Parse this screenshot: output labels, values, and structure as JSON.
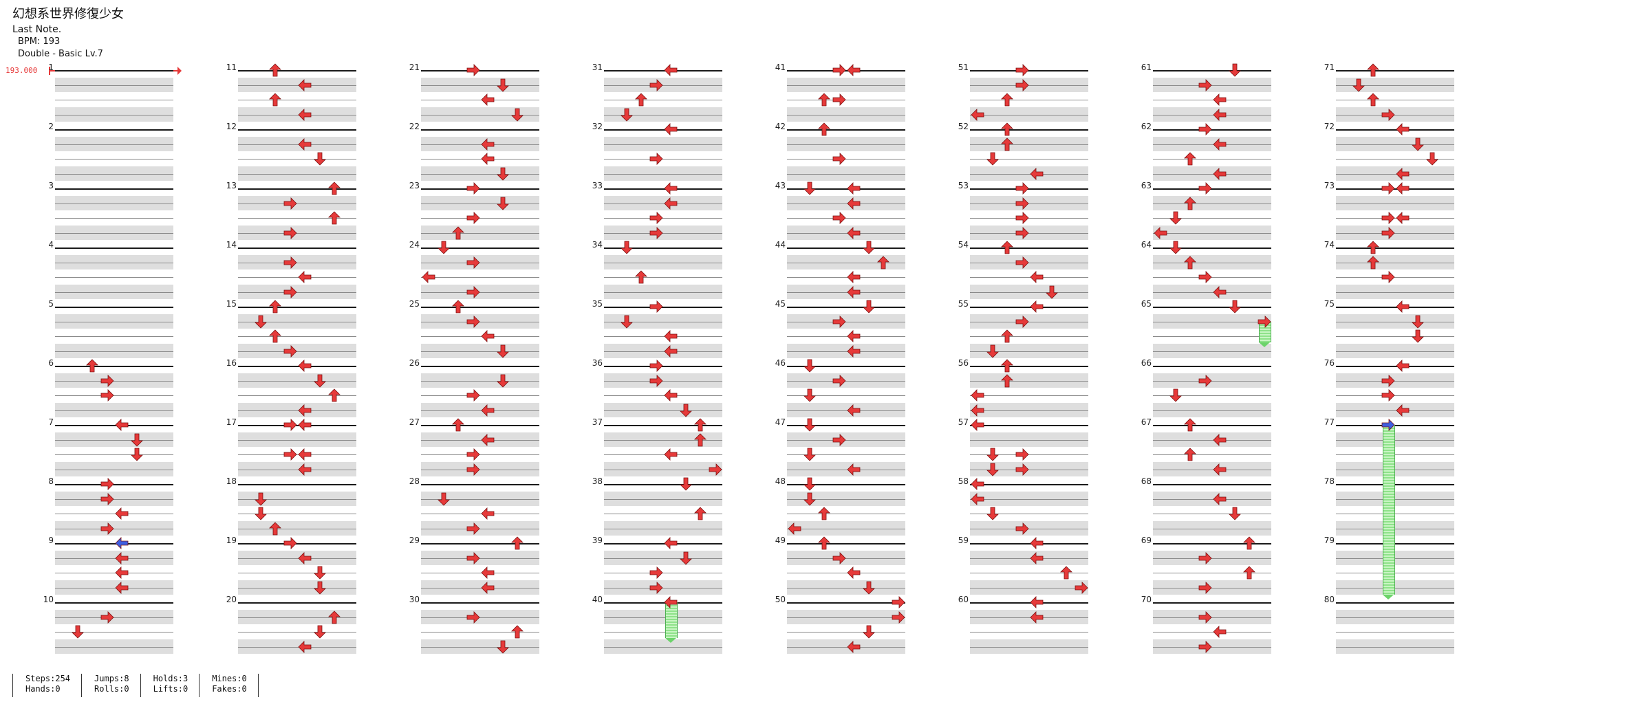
{
  "header": {
    "song_title": "幻想系世界修復少女",
    "artist": "Last Note.",
    "bpm_line": "BPM: 193",
    "chart_info": "Double - Basic  Lv.7"
  },
  "bpm_marker": "193.000",
  "colors": {
    "arrow": "#e63a3a",
    "blue": "#3f5fe0",
    "hold": "#8fe28a"
  },
  "measures": {
    "labels": [
      "1",
      "2",
      "3",
      "4",
      "5",
      "6",
      "7",
      "8",
      "9",
      "10",
      "11",
      "12",
      "13",
      "14",
      "15",
      "16",
      "17",
      "18",
      "19",
      "20",
      "21",
      "22",
      "23",
      "24",
      "25",
      "26",
      "27",
      "28",
      "29",
      "30",
      "31",
      "32",
      "33",
      "34",
      "35",
      "36",
      "37",
      "38",
      "39",
      "40",
      "41",
      "42",
      "43",
      "44",
      "45",
      "46",
      "47",
      "48",
      "49",
      "50",
      "51",
      "52",
      "53",
      "54",
      "55",
      "56",
      "57",
      "58",
      "59",
      "60",
      "61",
      "62",
      "63",
      "64",
      "65",
      "66",
      "67",
      "68",
      "69",
      "70",
      "71",
      "72",
      "73",
      "74",
      "75",
      "76",
      "77",
      "78",
      "79",
      "80"
    ],
    "notes": {
      "6": [
        [
          0,
          2,
          "U"
        ],
        [
          1,
          3,
          "R"
        ],
        [
          2,
          3,
          "R"
        ]
      ],
      "7": [
        [
          0,
          4,
          "L"
        ],
        [
          1,
          5,
          "D"
        ],
        [
          2,
          5,
          "D"
        ]
      ],
      "8": [
        [
          0,
          3,
          "R"
        ],
        [
          1,
          3,
          "R"
        ],
        [
          2,
          4,
          "L"
        ],
        [
          3,
          3,
          "R"
        ]
      ],
      "9": [
        [
          0,
          4,
          "L",
          "blue"
        ],
        [
          1,
          4,
          "L"
        ],
        [
          2,
          4,
          "L"
        ],
        [
          3,
          4,
          "L"
        ]
      ],
      "10": [
        [
          1,
          3,
          "R"
        ],
        [
          2,
          1,
          "D"
        ]
      ],
      "11": [
        [
          0,
          2,
          "U"
        ],
        [
          1,
          4,
          "L"
        ],
        [
          2,
          2,
          "U"
        ],
        [
          3,
          4,
          "L"
        ]
      ],
      "12": [
        [
          1,
          4,
          "L"
        ],
        [
          2,
          5,
          "D"
        ]
      ],
      "13": [
        [
          0,
          6,
          "U"
        ],
        [
          1,
          3,
          "R"
        ],
        [
          2,
          6,
          "U"
        ],
        [
          3,
          3,
          "R"
        ]
      ],
      "14": [
        [
          1,
          3,
          "R"
        ],
        [
          2,
          4,
          "L"
        ],
        [
          3,
          3,
          "R"
        ]
      ],
      "15": [
        [
          0,
          2,
          "U"
        ],
        [
          1,
          1,
          "D"
        ],
        [
          2,
          2,
          "U"
        ],
        [
          3,
          3,
          "R"
        ]
      ],
      "16": [
        [
          0,
          4,
          "L"
        ],
        [
          1,
          5,
          "D"
        ],
        [
          2,
          6,
          "U"
        ],
        [
          3,
          4,
          "L"
        ]
      ],
      "17": [
        [
          0,
          3,
          "R"
        ],
        [
          0,
          4,
          "L"
        ],
        [
          2,
          3,
          "R"
        ],
        [
          2,
          4,
          "L"
        ],
        [
          3,
          4,
          "L"
        ]
      ],
      "18": [
        [
          1,
          1,
          "D"
        ],
        [
          2,
          1,
          "D"
        ],
        [
          3,
          2,
          "U"
        ]
      ],
      "19": [
        [
          0,
          3,
          "R"
        ],
        [
          1,
          4,
          "L"
        ],
        [
          2,
          5,
          "D"
        ],
        [
          3,
          5,
          "D"
        ]
      ],
      "20": [
        [
          1,
          6,
          "U"
        ],
        [
          2,
          5,
          "D"
        ],
        [
          3,
          4,
          "L"
        ]
      ],
      "21": [
        [
          0,
          3,
          "R"
        ],
        [
          1,
          5,
          "D"
        ],
        [
          2,
          4,
          "L"
        ],
        [
          3,
          6,
          "D"
        ]
      ],
      "22": [
        [
          1,
          4,
          "L"
        ],
        [
          2,
          4,
          "L"
        ],
        [
          3,
          5,
          "D"
        ]
      ],
      "23": [
        [
          0,
          3,
          "R"
        ],
        [
          1,
          5,
          "D"
        ],
        [
          2,
          3,
          "R"
        ],
        [
          3,
          2,
          "U"
        ]
      ],
      "24": [
        [
          0,
          1,
          "D"
        ],
        [
          1,
          3,
          "R"
        ],
        [
          2,
          0,
          "L"
        ],
        [
          3,
          3,
          "R"
        ]
      ],
      "25": [
        [
          0,
          2,
          "U"
        ],
        [
          1,
          3,
          "R"
        ],
        [
          2,
          4,
          "L"
        ],
        [
          3,
          5,
          "D"
        ]
      ],
      "26": [
        [
          1,
          5,
          "D"
        ],
        [
          2,
          3,
          "R"
        ],
        [
          3,
          4,
          "L"
        ]
      ],
      "27": [
        [
          0,
          2,
          "U"
        ],
        [
          1,
          4,
          "L"
        ],
        [
          2,
          3,
          "R"
        ],
        [
          3,
          3,
          "R"
        ]
      ],
      "28": [
        [
          1,
          1,
          "D"
        ],
        [
          2,
          4,
          "L"
        ],
        [
          3,
          3,
          "R"
        ]
      ],
      "29": [
        [
          0,
          6,
          "U"
        ],
        [
          1,
          3,
          "R"
        ],
        [
          2,
          4,
          "L"
        ],
        [
          3,
          4,
          "L"
        ]
      ],
      "30": [
        [
          1,
          3,
          "R"
        ],
        [
          2,
          6,
          "U"
        ],
        [
          3,
          5,
          "D"
        ]
      ],
      "31": [
        [
          0,
          4,
          "L"
        ],
        [
          1,
          3,
          "R"
        ],
        [
          2,
          2,
          "U"
        ],
        [
          3,
          1,
          "D"
        ]
      ],
      "32": [
        [
          0,
          4,
          "L"
        ],
        [
          2,
          3,
          "R"
        ]
      ],
      "33": [
        [
          0,
          4,
          "L"
        ],
        [
          1,
          4,
          "L"
        ],
        [
          2,
          3,
          "R"
        ],
        [
          3,
          3,
          "R"
        ]
      ],
      "34": [
        [
          0,
          1,
          "D"
        ],
        [
          2,
          2,
          "U"
        ]
      ],
      "35": [
        [
          0,
          3,
          "R"
        ],
        [
          1,
          1,
          "D"
        ],
        [
          2,
          4,
          "L"
        ],
        [
          3,
          4,
          "L"
        ]
      ],
      "36": [
        [
          0,
          3,
          "R"
        ],
        [
          1,
          3,
          "R"
        ],
        [
          2,
          4,
          "L"
        ],
        [
          3,
          5,
          "D"
        ]
      ],
      "37": [
        [
          0,
          6,
          "U"
        ],
        [
          1,
          6,
          "U"
        ],
        [
          2,
          4,
          "L"
        ],
        [
          3,
          7,
          "R"
        ]
      ],
      "38": [
        [
          0,
          5,
          "D"
        ],
        [
          2,
          6,
          "U"
        ]
      ],
      "39": [
        [
          0,
          4,
          "L"
        ],
        [
          1,
          5,
          "D"
        ],
        [
          2,
          3,
          "R"
        ],
        [
          3,
          3,
          "R"
        ]
      ],
      "40": [
        [
          0,
          4,
          "L"
        ]
      ],
      "41": [
        [
          0,
          3,
          "R"
        ],
        [
          0,
          4,
          "L"
        ],
        [
          2,
          2,
          "U"
        ],
        [
          2,
          3,
          "R"
        ]
      ],
      "42": [
        [
          0,
          2,
          "U"
        ],
        [
          2,
          3,
          "R"
        ]
      ],
      "43": [
        [
          0,
          1,
          "D"
        ],
        [
          0,
          4,
          "L"
        ],
        [
          1,
          4,
          "L"
        ],
        [
          2,
          3,
          "R"
        ],
        [
          3,
          4,
          "L"
        ]
      ],
      "44": [
        [
          0,
          5,
          "D"
        ],
        [
          1,
          6,
          "U"
        ],
        [
          2,
          4,
          "L"
        ],
        [
          3,
          4,
          "L"
        ]
      ],
      "45": [
        [
          0,
          5,
          "D"
        ],
        [
          1,
          3,
          "R"
        ],
        [
          2,
          4,
          "L"
        ],
        [
          3,
          4,
          "L"
        ]
      ],
      "46": [
        [
          0,
          1,
          "D"
        ],
        [
          1,
          3,
          "R"
        ],
        [
          2,
          1,
          "D"
        ],
        [
          3,
          4,
          "L"
        ]
      ],
      "47": [
        [
          0,
          1,
          "D"
        ],
        [
          1,
          3,
          "R"
        ],
        [
          2,
          1,
          "D"
        ],
        [
          3,
          4,
          "L"
        ]
      ],
      "48": [
        [
          0,
          1,
          "D"
        ],
        [
          1,
          1,
          "D"
        ],
        [
          2,
          2,
          "U"
        ],
        [
          3,
          0,
          "L"
        ]
      ],
      "49": [
        [
          0,
          2,
          "U"
        ],
        [
          1,
          3,
          "R"
        ],
        [
          2,
          4,
          "L"
        ],
        [
          3,
          5,
          "D"
        ]
      ],
      "50": [
        [
          0,
          7,
          "R"
        ],
        [
          1,
          7,
          "R"
        ],
        [
          2,
          5,
          "D"
        ],
        [
          3,
          4,
          "L"
        ]
      ],
      "51": [
        [
          0,
          3,
          "R"
        ],
        [
          1,
          3,
          "R"
        ],
        [
          2,
          2,
          "U"
        ],
        [
          3,
          0,
          "L"
        ]
      ],
      "52": [
        [
          0,
          2,
          "U"
        ],
        [
          1,
          2,
          "U"
        ],
        [
          2,
          1,
          "D"
        ],
        [
          3,
          4,
          "L"
        ]
      ],
      "53": [
        [
          0,
          3,
          "R"
        ],
        [
          1,
          3,
          "R"
        ],
        [
          2,
          3,
          "R"
        ],
        [
          3,
          3,
          "R"
        ]
      ],
      "54": [
        [
          0,
          2,
          "U"
        ],
        [
          1,
          3,
          "R"
        ],
        [
          2,
          4,
          "L"
        ],
        [
          3,
          5,
          "D"
        ]
      ],
      "55": [
        [
          0,
          4,
          "L"
        ],
        [
          1,
          3,
          "R"
        ],
        [
          2,
          2,
          "U"
        ],
        [
          3,
          1,
          "D"
        ]
      ],
      "56": [
        [
          0,
          2,
          "U"
        ],
        [
          1,
          2,
          "U"
        ],
        [
          2,
          0,
          "L"
        ],
        [
          3,
          0,
          "L"
        ]
      ],
      "57": [
        [
          0,
          0,
          "L"
        ],
        [
          2,
          1,
          "D"
        ],
        [
          2,
          3,
          "R"
        ],
        [
          3,
          1,
          "D"
        ],
        [
          3,
          3,
          "R"
        ]
      ],
      "58": [
        [
          0,
          0,
          "L"
        ],
        [
          1,
          0,
          "L"
        ],
        [
          2,
          1,
          "D"
        ],
        [
          3,
          3,
          "R"
        ]
      ],
      "59": [
        [
          0,
          4,
          "L"
        ],
        [
          1,
          4,
          "L"
        ],
        [
          2,
          6,
          "U"
        ],
        [
          3,
          7,
          "R"
        ]
      ],
      "60": [
        [
          0,
          4,
          "L"
        ],
        [
          1,
          4,
          "L"
        ]
      ],
      "61": [
        [
          0,
          5,
          "D"
        ],
        [
          1,
          3,
          "R"
        ],
        [
          2,
          4,
          "L"
        ],
        [
          3,
          4,
          "L"
        ]
      ],
      "62": [
        [
          0,
          3,
          "R"
        ],
        [
          1,
          4,
          "L"
        ],
        [
          2,
          2,
          "U"
        ],
        [
          3,
          4,
          "L"
        ]
      ],
      "63": [
        [
          0,
          3,
          "R"
        ],
        [
          1,
          2,
          "U"
        ],
        [
          2,
          1,
          "D"
        ],
        [
          3,
          0,
          "L"
        ]
      ],
      "64": [
        [
          0,
          1,
          "D"
        ],
        [
          1,
          2,
          "U"
        ],
        [
          2,
          3,
          "R"
        ],
        [
          3,
          4,
          "L"
        ]
      ],
      "65": [
        [
          0,
          5,
          "D"
        ],
        [
          1,
          7,
          "R"
        ]
      ],
      "66": [
        [
          1,
          3,
          "R"
        ],
        [
          2,
          1,
          "D"
        ]
      ],
      "67": [
        [
          0,
          2,
          "U"
        ],
        [
          1,
          4,
          "L"
        ],
        [
          2,
          2,
          "U"
        ],
        [
          3,
          4,
          "L"
        ]
      ],
      "68": [
        [
          1,
          4,
          "L"
        ],
        [
          2,
          5,
          "D"
        ]
      ],
      "69": [
        [
          0,
          6,
          "U"
        ],
        [
          1,
          3,
          "R"
        ],
        [
          2,
          6,
          "U"
        ],
        [
          3,
          3,
          "R"
        ]
      ],
      "70": [
        [
          1,
          3,
          "R"
        ],
        [
          2,
          4,
          "L"
        ],
        [
          3,
          3,
          "R"
        ]
      ],
      "71": [
        [
          0,
          2,
          "U"
        ],
        [
          1,
          1,
          "D"
        ],
        [
          2,
          2,
          "U"
        ],
        [
          3,
          3,
          "R"
        ]
      ],
      "72": [
        [
          0,
          4,
          "L"
        ],
        [
          1,
          5,
          "D"
        ],
        [
          2,
          6,
          "D"
        ],
        [
          3,
          4,
          "L"
        ]
      ],
      "73": [
        [
          0,
          3,
          "R"
        ],
        [
          0,
          4,
          "L"
        ],
        [
          2,
          3,
          "R"
        ],
        [
          2,
          4,
          "L"
        ],
        [
          3,
          3,
          "R"
        ]
      ],
      "74": [
        [
          0,
          2,
          "U"
        ],
        [
          1,
          2,
          "U"
        ],
        [
          2,
          3,
          "R"
        ]
      ],
      "75": [
        [
          0,
          4,
          "L"
        ],
        [
          1,
          5,
          "D"
        ],
        [
          2,
          5,
          "D"
        ]
      ],
      "76": [
        [
          0,
          4,
          "L"
        ],
        [
          1,
          3,
          "R"
        ],
        [
          2,
          3,
          "R"
        ],
        [
          3,
          4,
          "L"
        ]
      ],
      "77": [
        [
          0,
          3,
          "R",
          "blue"
        ]
      ]
    },
    "holds": [
      {
        "measure": "40",
        "lane": 4,
        "from": 0,
        "to": 2.4
      },
      {
        "measure": "65",
        "lane": 7,
        "from": 1,
        "to": 2.4
      },
      {
        "measure": "77",
        "lane": 3,
        "from": 0,
        "to": 11.5
      }
    ]
  },
  "stats": [
    {
      "a": "Steps:254",
      "b": "Hands:0"
    },
    {
      "a": "Jumps:8",
      "b": "Rolls:0"
    },
    {
      "a": "Holds:3",
      "b": "Lifts:0"
    },
    {
      "a": "Mines:0",
      "b": "Fakes:0"
    }
  ]
}
